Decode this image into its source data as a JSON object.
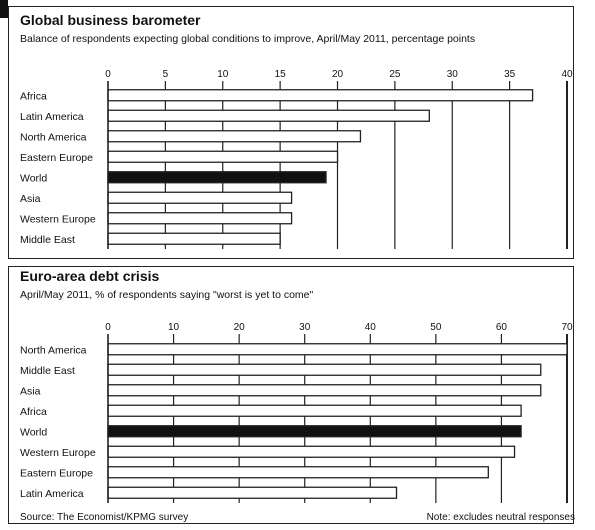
{
  "chart_data": [
    {
      "type": "bar",
      "orientation": "horizontal",
      "title": "Global business barometer",
      "subtitle": "Balance of respondents expecting global conditions to improve, April/May 2011, percentage points",
      "categories": [
        "Africa",
        "Latin America",
        "North America",
        "Eastern Europe",
        "World",
        "Asia",
        "Western Europe",
        "Middle East"
      ],
      "values": [
        37,
        28,
        22,
        20,
        19,
        16,
        16,
        15
      ],
      "highlight": "World",
      "xlim": [
        0,
        40
      ],
      "xticks": [
        0,
        5,
        10,
        15,
        20,
        25,
        30,
        35,
        40
      ],
      "grid": true,
      "colors": {
        "bar": "#ffffff",
        "highlight": "#111111",
        "edge": "#222222"
      }
    },
    {
      "type": "bar",
      "orientation": "horizontal",
      "title": "Euro-area debt crisis",
      "subtitle": "April/May 2011, % of respondents saying \"worst is yet to come\"",
      "categories": [
        "North America",
        "Middle East",
        "Asia",
        "Africa",
        "World",
        "Western Europe",
        "Eastern Europe",
        "Latin America"
      ],
      "values": [
        70,
        66,
        66,
        63,
        63,
        62,
        58,
        44
      ],
      "highlight": "World",
      "xlim": [
        0,
        70
      ],
      "xticks": [
        0,
        10,
        20,
        30,
        40,
        50,
        60,
        70
      ],
      "grid": true,
      "colors": {
        "bar": "#ffffff",
        "highlight": "#111111",
        "edge": "#222222"
      }
    }
  ],
  "footer": {
    "source": "Source: The Economist/KPMG survey",
    "note": "Note: excludes neutral responses"
  }
}
